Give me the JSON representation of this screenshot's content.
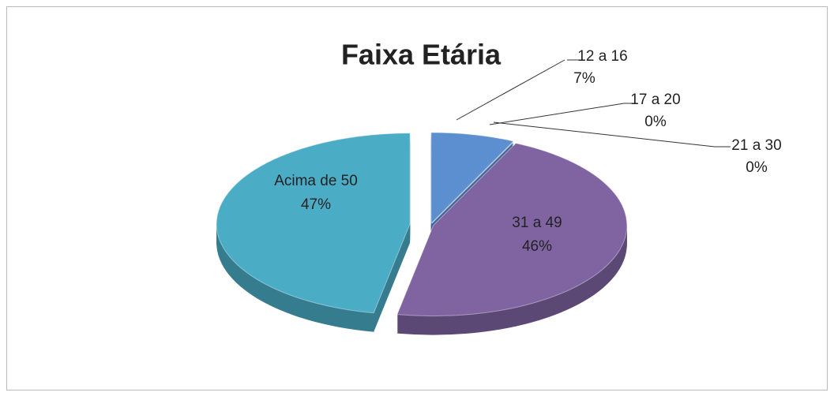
{
  "chart_data": {
    "type": "pie",
    "title": "Faixa Etária",
    "categories": [
      "12 a 16",
      "17 a 20",
      "21 a 30",
      "31 a 49",
      "Acima de 50"
    ],
    "values": [
      7,
      0,
      0,
      46,
      47
    ],
    "value_labels": [
      "7%",
      "0%",
      "0%",
      "46%",
      "47%"
    ],
    "colors": [
      "#5b8fd0",
      "#9bbb59",
      "#c0504d",
      "#8064a2",
      "#4bacc6"
    ]
  }
}
